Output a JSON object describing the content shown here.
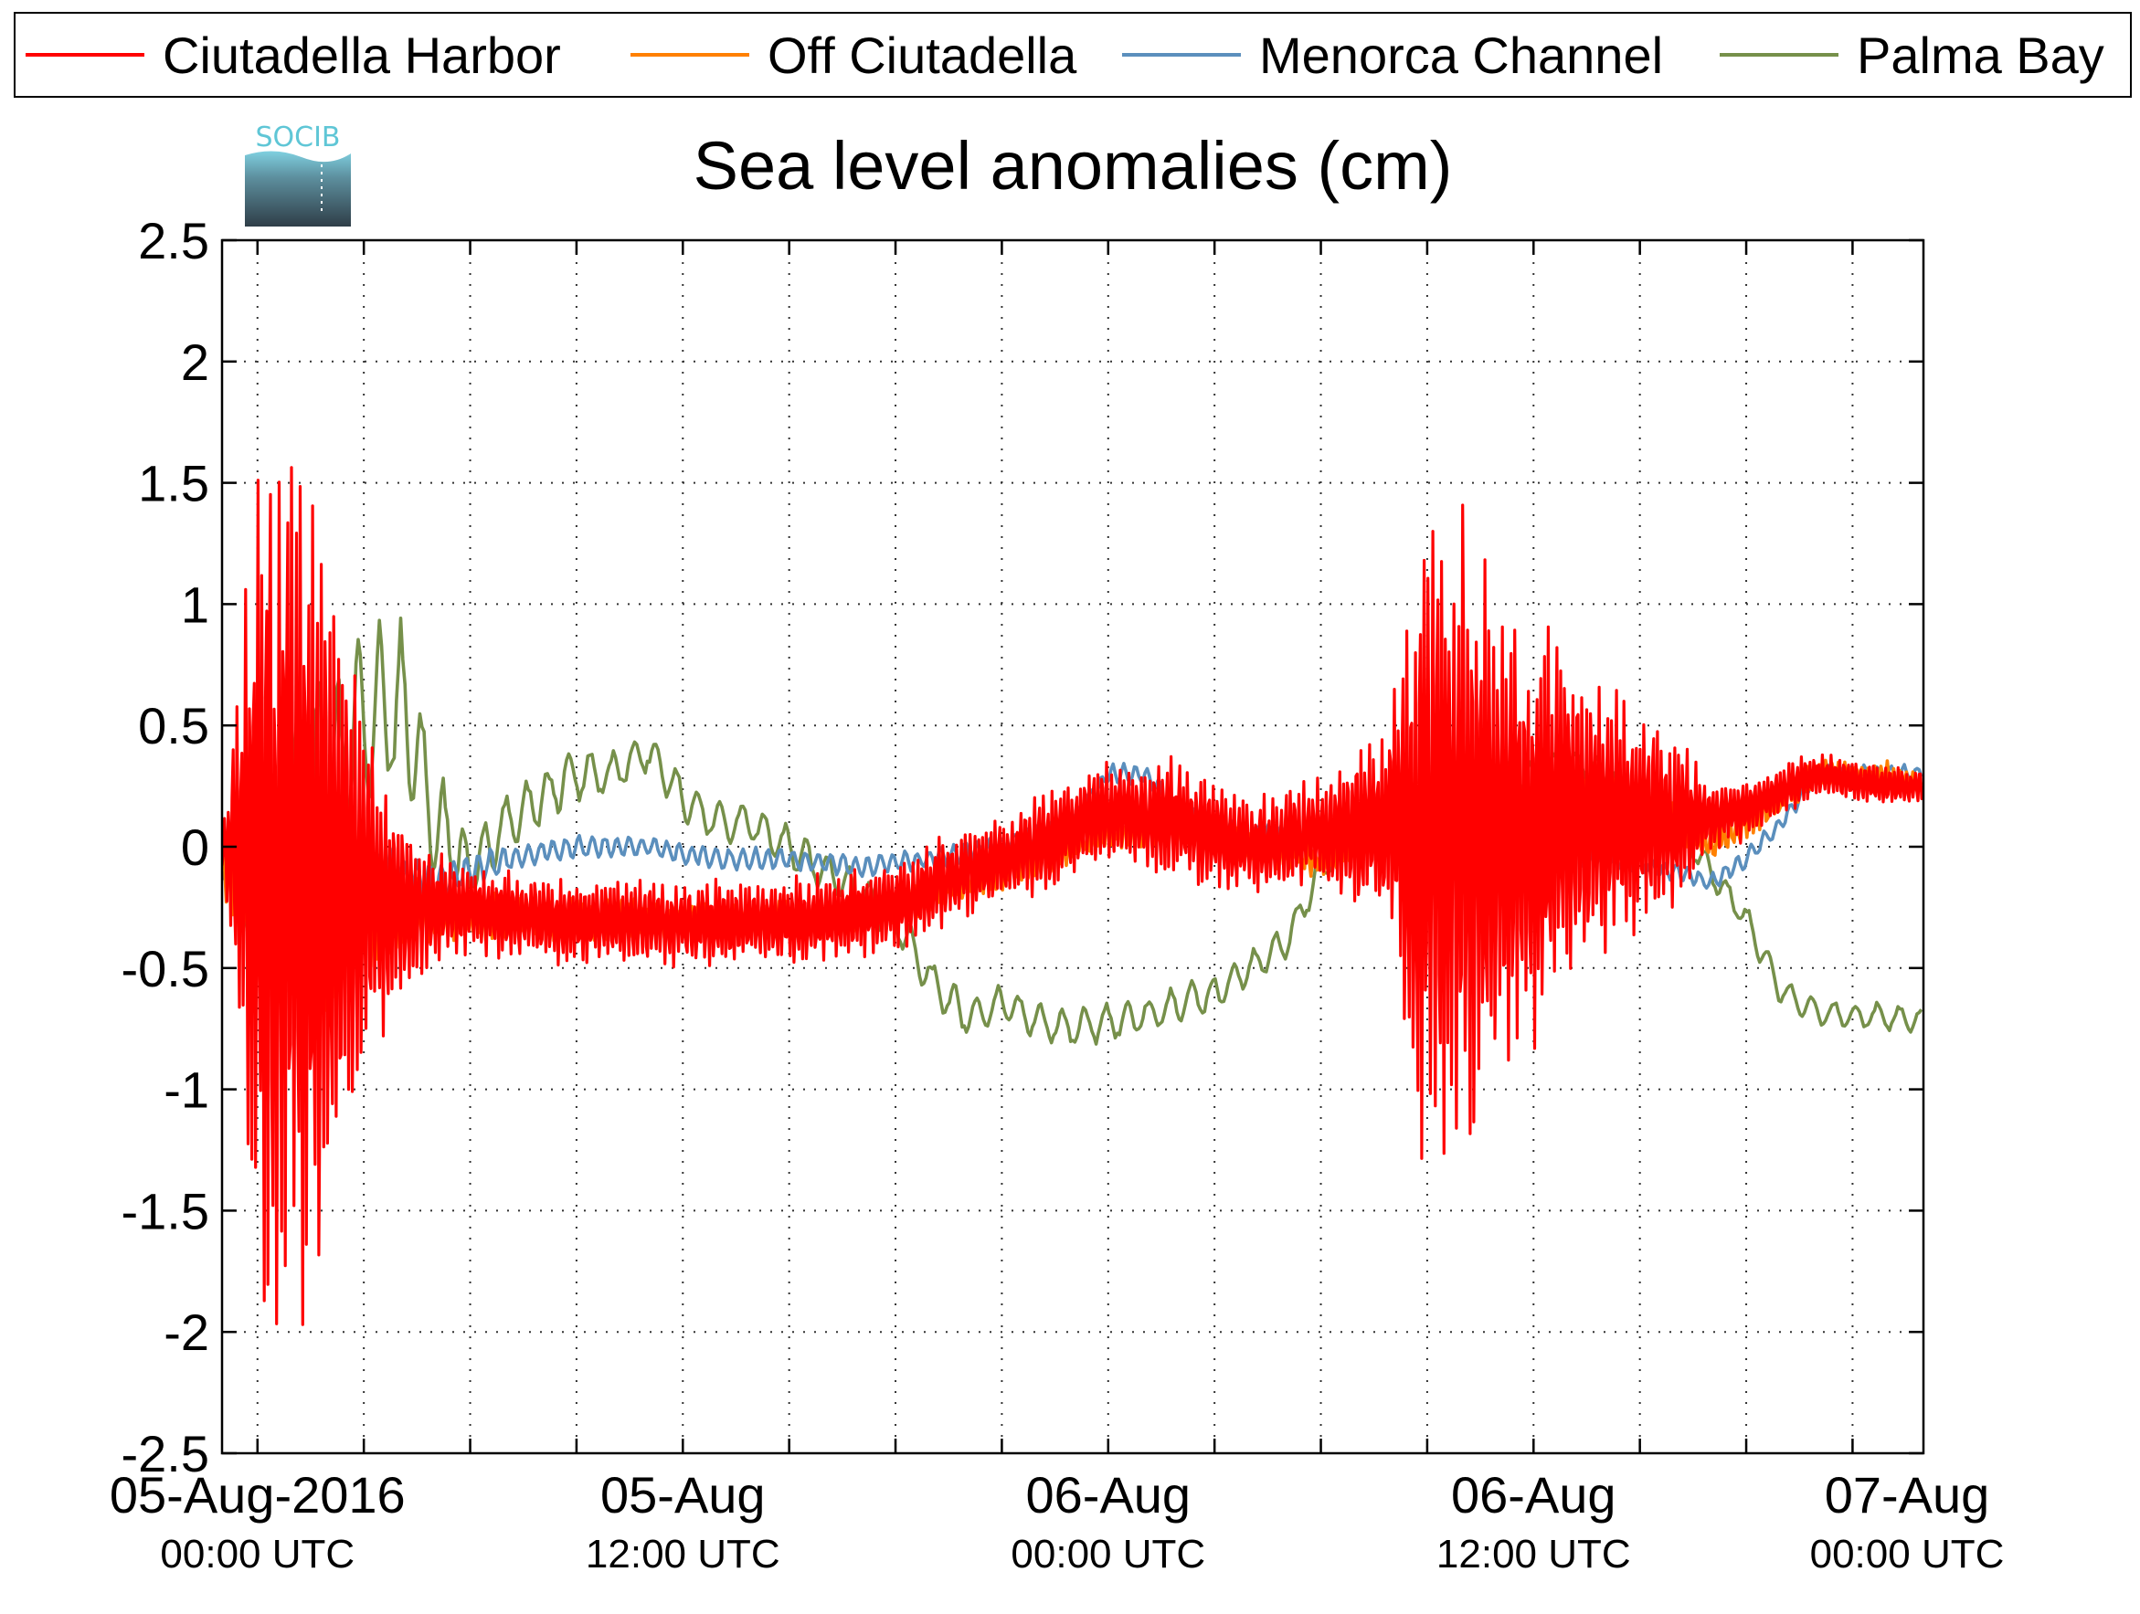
{
  "logo": {
    "text": "SOCIB"
  },
  "chart_data": {
    "type": "line",
    "title": "Sea level anomalies (cm)",
    "xlabel": "",
    "ylabel": "",
    "ylim": [
      -2.5,
      2.5
    ],
    "yticks": [
      "2.5",
      "2",
      "1.5",
      "1",
      "0.5",
      "0",
      "-0.5",
      "-1",
      "-1.5",
      "-2",
      "-2.5"
    ],
    "xlim_hours": [
      -1,
      47
    ],
    "xticks": [
      {
        "line1": "05-Aug-2016",
        "line2": "00:00 UTC"
      },
      {
        "line1": "05-Aug",
        "line2": "12:00 UTC"
      },
      {
        "line1": "06-Aug",
        "line2": "00:00 UTC"
      },
      {
        "line1": "06-Aug",
        "line2": "12:00 UTC"
      },
      {
        "line1": "07-Aug",
        "line2": "00:00 UTC"
      }
    ],
    "grid": true,
    "legend_position": "top",
    "series": [
      {
        "name": "Ciutadella Harbor",
        "color": "#ff0000",
        "amplitude_envelope": [
          [
            -1,
            0.1
          ],
          [
            0,
            1.8
          ],
          [
            1,
            2.1
          ],
          [
            2,
            1.7
          ],
          [
            3,
            0.8
          ],
          [
            4.5,
            0.3
          ],
          [
            6,
            0.2
          ],
          [
            12,
            0.18
          ],
          [
            18,
            0.2
          ],
          [
            24,
            0.22
          ],
          [
            26,
            0.28
          ],
          [
            28,
            0.2
          ],
          [
            30,
            0.25
          ],
          [
            32,
            0.5
          ],
          [
            33,
            1.6
          ],
          [
            34,
            1.5
          ],
          [
            35,
            1.1
          ],
          [
            36,
            0.9
          ],
          [
            37,
            0.8
          ],
          [
            38,
            0.6
          ],
          [
            39,
            0.5
          ],
          [
            40,
            0.4
          ],
          [
            41,
            0.15
          ],
          [
            44,
            0.1
          ],
          [
            47,
            0.08
          ]
        ],
        "baseline": [
          [
            -1,
            0
          ],
          [
            0,
            -0.1
          ],
          [
            2,
            -0.2
          ],
          [
            4,
            -0.25
          ],
          [
            6,
            -0.25
          ],
          [
            8,
            -0.3
          ],
          [
            12,
            -0.32
          ],
          [
            16,
            -0.3
          ],
          [
            18,
            -0.25
          ],
          [
            20,
            -0.1
          ],
          [
            22,
            0.0
          ],
          [
            24,
            0.15
          ],
          [
            26,
            0.1
          ],
          [
            28,
            0.0
          ],
          [
            30,
            0.05
          ],
          [
            32,
            0.1
          ],
          [
            34,
            0.05
          ],
          [
            36,
            0.05
          ],
          [
            38,
            0.1
          ],
          [
            40,
            0.1
          ],
          [
            42,
            0.15
          ],
          [
            44,
            0.3
          ],
          [
            46,
            0.25
          ],
          [
            47,
            0.25
          ]
        ]
      },
      {
        "name": "Off Ciutadella",
        "color": "#ff8000",
        "amplitude_envelope": [
          [
            -1,
            0.1
          ],
          [
            0,
            0.6
          ],
          [
            1,
            0.7
          ],
          [
            2,
            0.5
          ],
          [
            3,
            0.3
          ],
          [
            5,
            0.12
          ],
          [
            12,
            0.08
          ],
          [
            24,
            0.08
          ],
          [
            32,
            0.08
          ],
          [
            34,
            0.12
          ],
          [
            38,
            0.1
          ],
          [
            42,
            0.08
          ],
          [
            47,
            0.05
          ]
        ],
        "baseline": [
          [
            -1,
            -0.1
          ],
          [
            2,
            -0.25
          ],
          [
            4,
            -0.25
          ],
          [
            8,
            -0.3
          ],
          [
            12,
            -0.3
          ],
          [
            16,
            -0.3
          ],
          [
            18,
            -0.25
          ],
          [
            20,
            -0.15
          ],
          [
            22,
            -0.05
          ],
          [
            24,
            0.05
          ],
          [
            26,
            0.1
          ],
          [
            28,
            0.0
          ],
          [
            30,
            -0.05
          ],
          [
            32,
            0.1
          ],
          [
            34,
            0.15
          ],
          [
            36,
            0.2
          ],
          [
            38,
            0.2
          ],
          [
            40,
            0.1
          ],
          [
            41,
            0.0
          ],
          [
            42,
            0.1
          ],
          [
            44,
            0.3
          ],
          [
            46,
            0.3
          ],
          [
            47,
            0.25
          ]
        ]
      },
      {
        "name": "Menorca Channel",
        "color": "#5b8fbd",
        "amplitude_envelope": [
          [
            -1,
            0.1
          ],
          [
            0,
            0.3
          ],
          [
            2,
            0.25
          ],
          [
            4,
            0.1
          ],
          [
            8,
            0.05
          ],
          [
            47,
            0.04
          ]
        ],
        "baseline": [
          [
            -1,
            -0.05
          ],
          [
            1,
            0.1
          ],
          [
            3,
            -0.1
          ],
          [
            5,
            -0.15
          ],
          [
            7,
            -0.05
          ],
          [
            9,
            0.0
          ],
          [
            11,
            0.0
          ],
          [
            13,
            -0.05
          ],
          [
            15,
            -0.05
          ],
          [
            17,
            -0.08
          ],
          [
            19,
            -0.05
          ],
          [
            21,
            0.0
          ],
          [
            23,
            0.1
          ],
          [
            24,
            0.3
          ],
          [
            25,
            0.3
          ],
          [
            26,
            0.15
          ],
          [
            28,
            0.05
          ],
          [
            30,
            0.05
          ],
          [
            32,
            0.1
          ],
          [
            34,
            0.0
          ],
          [
            36,
            -0.05
          ],
          [
            38,
            -0.05
          ],
          [
            40,
            -0.1
          ],
          [
            41,
            -0.15
          ],
          [
            42,
            -0.05
          ],
          [
            43,
            0.1
          ],
          [
            44,
            0.3
          ],
          [
            46,
            0.3
          ],
          [
            47,
            0.3
          ]
        ]
      },
      {
        "name": "Palma Bay",
        "color": "#76904a",
        "amplitude_envelope": [
          [
            -1,
            0.05
          ],
          [
            0,
            0.3
          ],
          [
            2,
            0.5
          ],
          [
            4,
            0.4
          ],
          [
            6,
            0.15
          ],
          [
            10,
            0.1
          ],
          [
            47,
            0.06
          ]
        ],
        "baseline": [
          [
            -1,
            0.0
          ],
          [
            0,
            -0.3
          ],
          [
            1,
            0.2
          ],
          [
            2,
            0.3
          ],
          [
            3,
            0.5
          ],
          [
            4,
            0.6
          ],
          [
            5,
            0.1
          ],
          [
            6,
            -0.1
          ],
          [
            7,
            0.1
          ],
          [
            8,
            0.2
          ],
          [
            9,
            0.3
          ],
          [
            10,
            0.3
          ],
          [
            11,
            0.4
          ],
          [
            12,
            0.2
          ],
          [
            13,
            0.1
          ],
          [
            14,
            0.1
          ],
          [
            15,
            0.0
          ],
          [
            16,
            -0.1
          ],
          [
            17,
            -0.2
          ],
          [
            18,
            -0.3
          ],
          [
            19,
            -0.55
          ],
          [
            20,
            -0.7
          ],
          [
            21,
            -0.65
          ],
          [
            22,
            -0.72
          ],
          [
            23,
            -0.75
          ],
          [
            24,
            -0.72
          ],
          [
            25,
            -0.7
          ],
          [
            26,
            -0.65
          ],
          [
            27,
            -0.6
          ],
          [
            28,
            -0.5
          ],
          [
            29,
            -0.4
          ],
          [
            30,
            -0.1
          ],
          [
            31,
            0.1
          ],
          [
            32,
            0.15
          ],
          [
            33,
            0.2
          ],
          [
            34,
            0.25
          ],
          [
            35,
            0.3
          ],
          [
            36,
            0.3
          ],
          [
            37,
            0.35
          ],
          [
            38,
            0.3
          ],
          [
            39,
            0.2
          ],
          [
            40,
            0.1
          ],
          [
            41,
            -0.1
          ],
          [
            42,
            -0.3
          ],
          [
            43,
            -0.6
          ],
          [
            44,
            -0.68
          ],
          [
            45,
            -0.7
          ],
          [
            46,
            -0.7
          ],
          [
            47,
            -0.72
          ]
        ]
      }
    ]
  }
}
